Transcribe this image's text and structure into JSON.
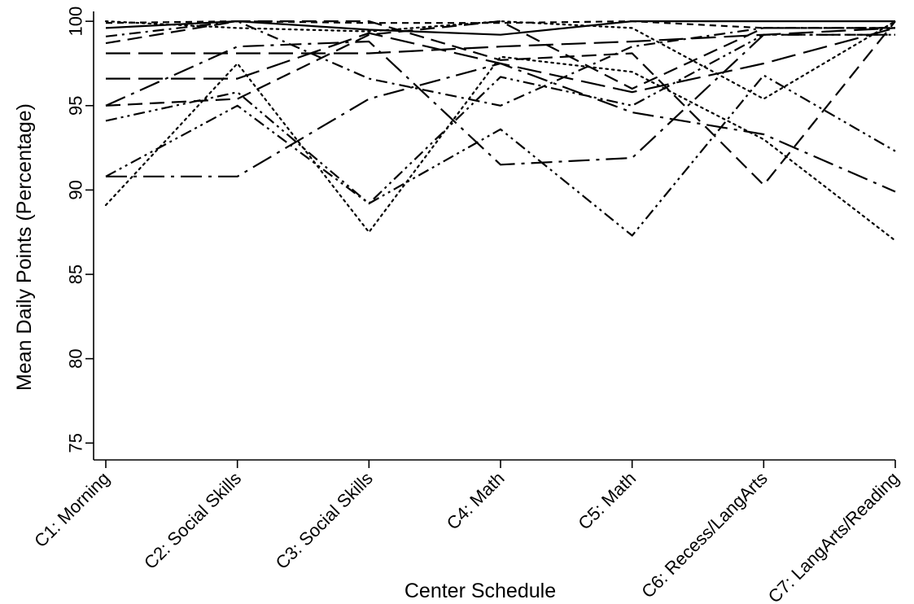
{
  "chart_data": {
    "type": "line",
    "xlabel": "Center Schedule",
    "ylabel": "Mean Daily Points (Percentage)",
    "categories": [
      "C1: Morning",
      "C2: Social Skills",
      "C3: Social Skills",
      "C4: Math",
      "C5: Math",
      "C6: Recess/LangArts",
      "C7: LangArts/Reading"
    ],
    "ylim": [
      74,
      100.2
    ],
    "yticks": [
      75,
      80,
      85,
      90,
      95,
      100
    ],
    "grid": false,
    "legend": "none",
    "series": [
      {
        "values": [
          99.6,
          100,
          99.5,
          99.2,
          100,
          100,
          100
        ],
        "dash": "solid"
      },
      {
        "values": [
          98.1,
          98.1,
          98.1,
          98.5,
          98.8,
          99.2,
          99.6
        ],
        "dash": "longdash"
      },
      {
        "values": [
          96.6,
          96.6,
          99.3,
          97.5,
          95.8,
          97.5,
          99.6
        ],
        "dash": "longdash"
      },
      {
        "values": [
          95.0,
          98.5,
          98.8,
          91.5,
          91.9,
          99.2,
          99.2
        ],
        "dash": "longdashdot"
      },
      {
        "values": [
          90.8,
          90.8,
          95.4,
          97.5,
          94.6,
          93.3,
          89.9
        ],
        "dash": "longdashdot"
      },
      {
        "values": [
          98.7,
          100,
          100,
          97.7,
          98.1,
          90.3,
          100
        ],
        "dash": "dash"
      },
      {
        "values": [
          95.0,
          95.4,
          99.2,
          100,
          96.0,
          99.6,
          99.6
        ],
        "dash": "dash"
      },
      {
        "values": [
          94.1,
          95.8,
          89.2,
          96.7,
          95.0,
          99.2,
          99.2
        ],
        "dash": "dashdotdot"
      },
      {
        "values": [
          90.8,
          95.0,
          89.2,
          93.6,
          87.3,
          96.8,
          92.3
        ],
        "dash": "dashdotdot"
      },
      {
        "values": [
          100,
          99.6,
          99.4,
          100,
          99.6,
          95.4,
          100
        ],
        "dash": "dot"
      },
      {
        "values": [
          89.1,
          97.5,
          87.5,
          97.9,
          97.0,
          93.0,
          87.0
        ],
        "dash": "dot"
      },
      {
        "values": [
          99.1,
          100,
          96.6,
          95.0,
          98.5,
          99.6,
          99.6
        ],
        "dash": "dashdot"
      },
      {
        "values": [
          99.9,
          100,
          99.9,
          99.9,
          100,
          99.6,
          99.6
        ],
        "dash": "shortdash"
      }
    ]
  }
}
